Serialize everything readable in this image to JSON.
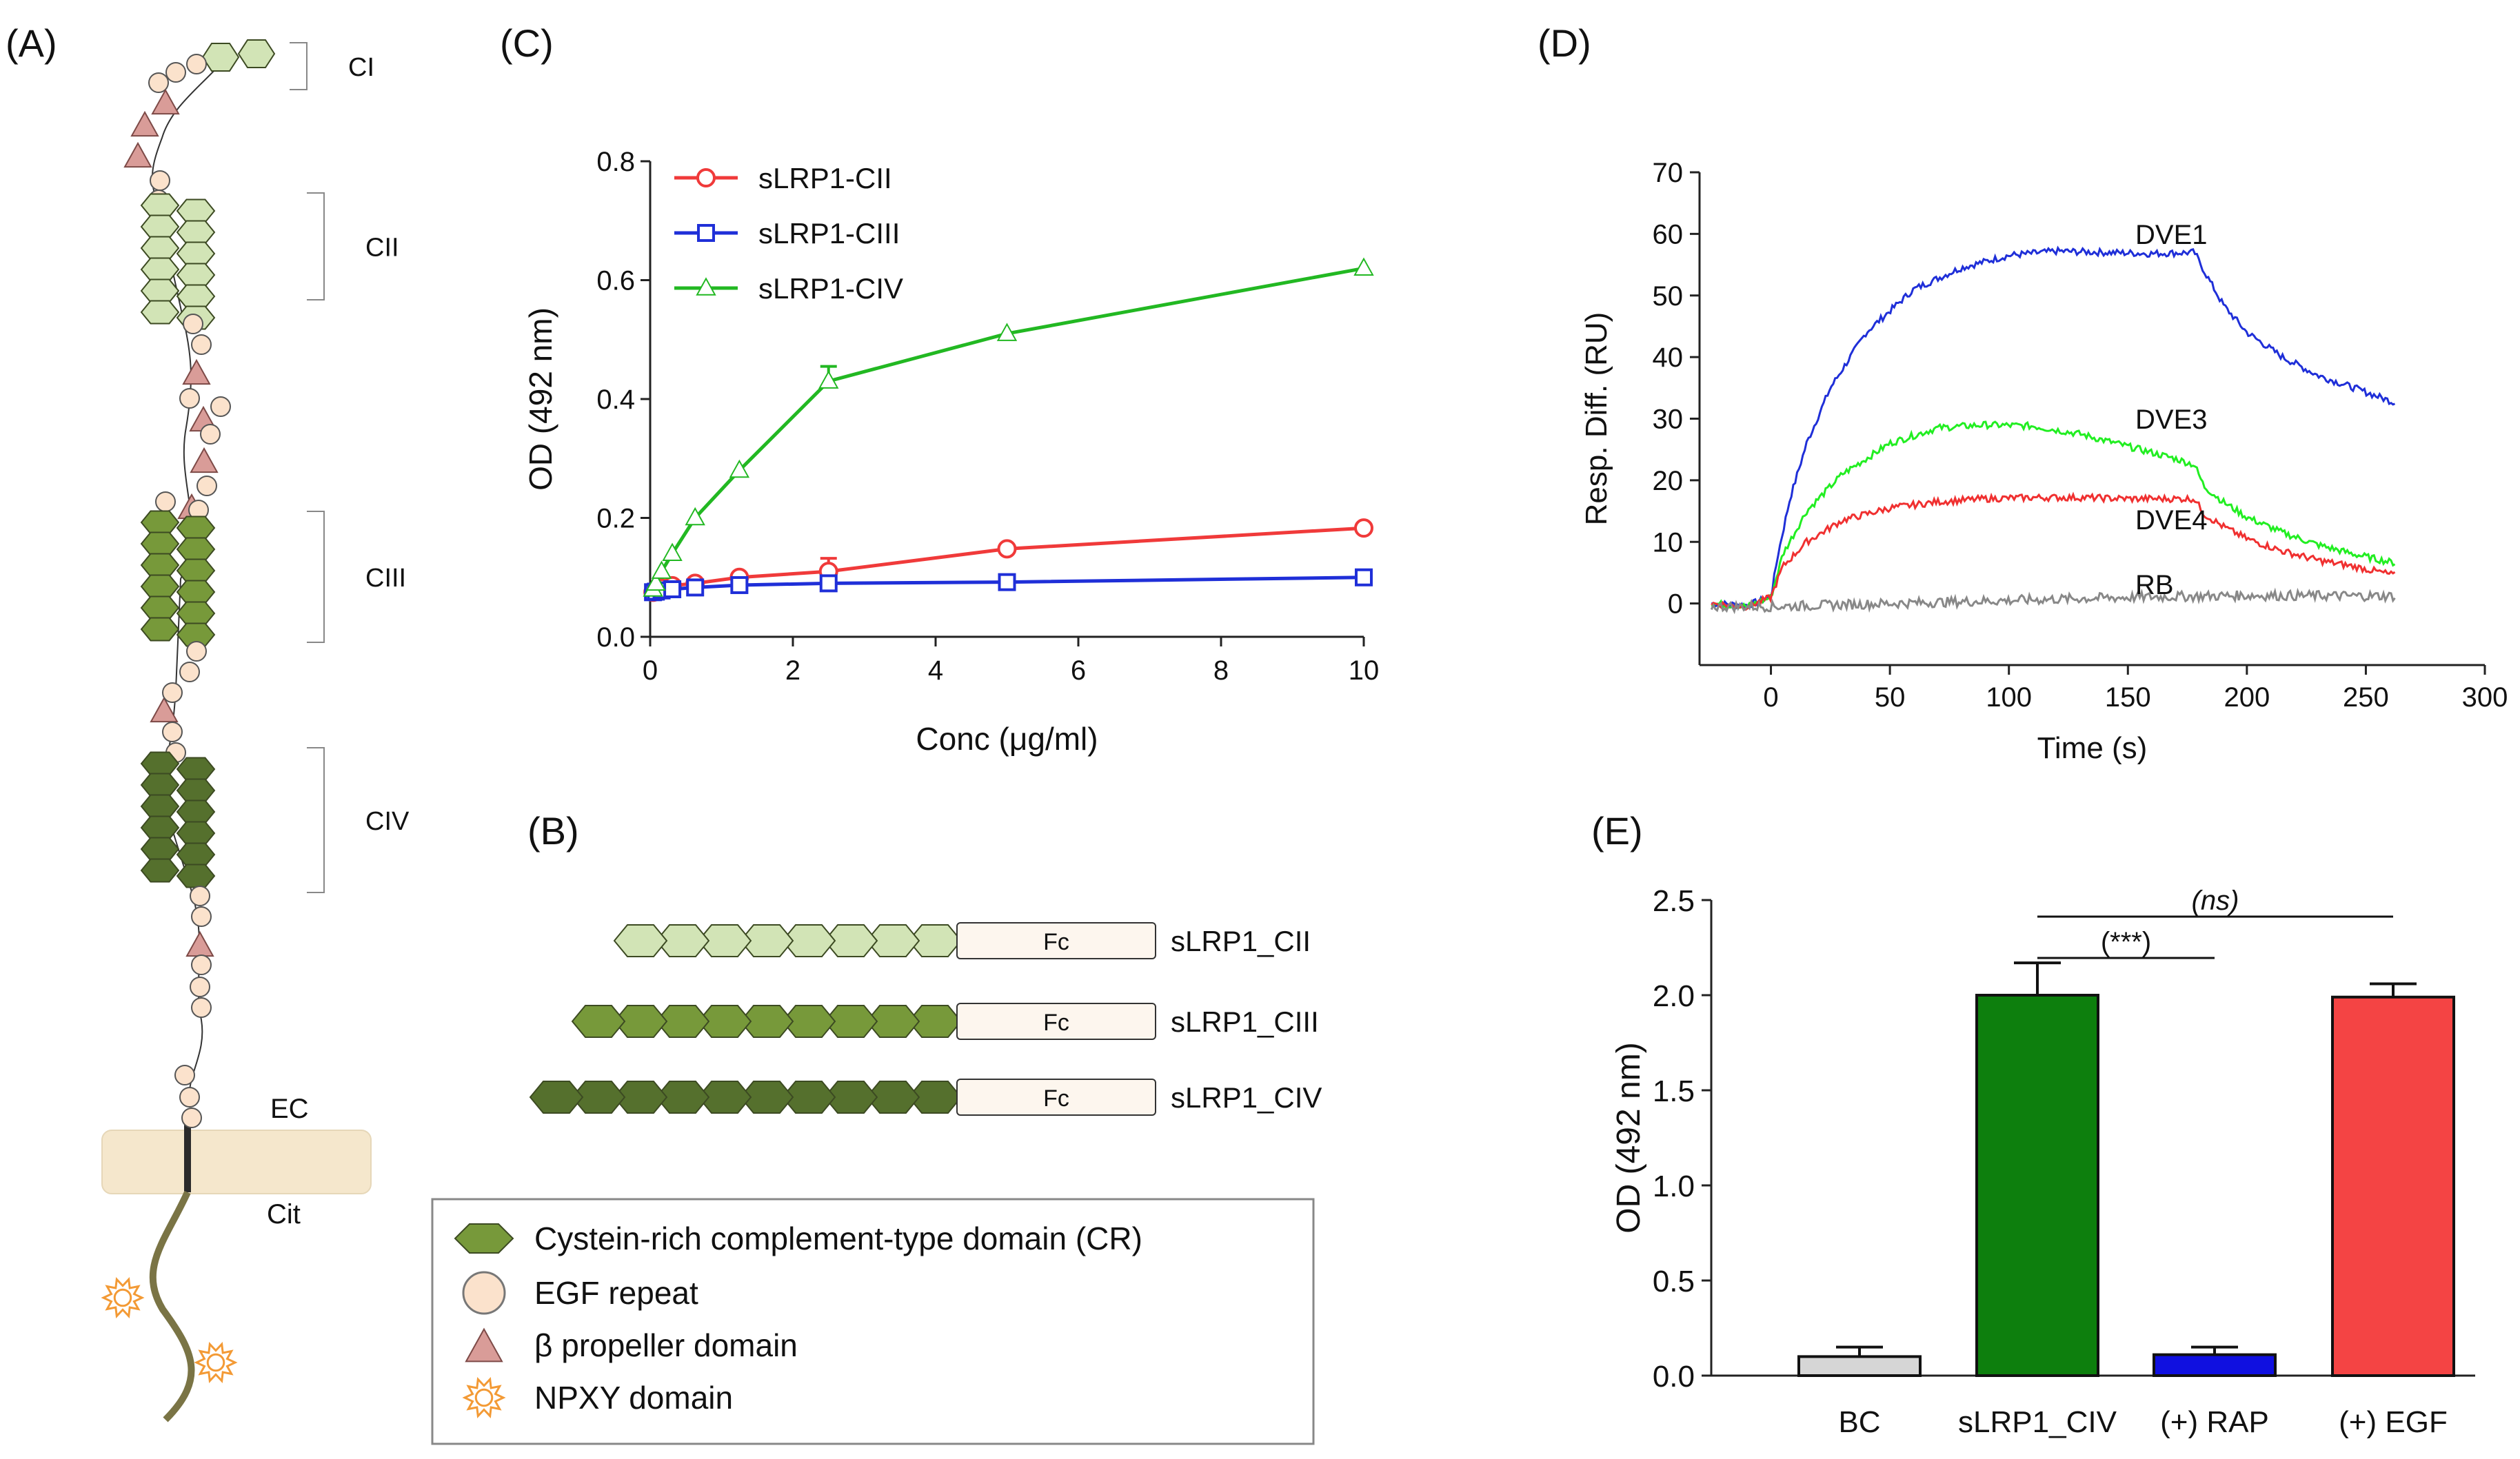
{
  "figure": {
    "panel_labels": {
      "a": "(A)",
      "b": "(B)",
      "c": "(C)",
      "d": "(D)",
      "e": "(E)"
    }
  },
  "colors": {
    "cr_light": "#d2e4b6",
    "cr_mid": "#77993a",
    "cr_dark": "#55702d",
    "egf": "#fbe2cc",
    "propeller": "#d99c98",
    "npxy": "#f39a35",
    "membrane": "#f5e7cc",
    "tail": "#7a7445",
    "fc": "#fdf6ee",
    "red": "#f03a3a",
    "blue": "#1f2fd8",
    "green": "#22b822",
    "gray": "#8a8a8a"
  },
  "panel_a": {
    "cluster_labels": [
      "CI",
      "CII",
      "CIII",
      "CIV"
    ],
    "membrane": {
      "ec": "EC",
      "cit": "Cit"
    }
  },
  "panel_b": {
    "constructs": [
      {
        "name": "sLRP1_CII",
        "domains": 8,
        "fc": "Fc"
      },
      {
        "name": "sLRP1_CIII",
        "domains": 9,
        "fc": "Fc"
      },
      {
        "name": "sLRP1_CIV",
        "domains": 10,
        "fc": "Fc"
      }
    ],
    "legend": [
      {
        "label": "Cystein-rich complement-type domain (CR)",
        "symbol": "hexagon"
      },
      {
        "label": "EGF repeat",
        "symbol": "circle"
      },
      {
        "label": "β propeller domain",
        "symbol": "triangle"
      },
      {
        "label": "NPXY domain",
        "symbol": "sun"
      }
    ]
  },
  "chart_data": [
    {
      "panel": "(C)",
      "type": "line",
      "title": "",
      "xlabel": "Conc (μg/ml)",
      "ylabel": "OD (492 nm)",
      "xlim": [
        0,
        10
      ],
      "ylim": [
        0,
        0.8
      ],
      "xticks": [
        0,
        2,
        4,
        6,
        8,
        10
      ],
      "yticks": [
        0.0,
        0.2,
        0.4,
        0.6,
        0.8
      ],
      "yticklabels": [
        "0.0",
        "0.2",
        "0.4",
        "0.6",
        "0.8"
      ],
      "x": [
        0.04,
        0.08,
        0.16,
        0.31,
        0.63,
        1.25,
        2.5,
        5,
        10
      ],
      "series": [
        {
          "name": "sLRP1-CII",
          "marker": "circle",
          "color": "#f03a3a",
          "values": [
            0.075,
            0.078,
            0.082,
            0.086,
            0.09,
            0.1,
            0.11,
            0.148,
            0.183
          ],
          "err": [
            0,
            0,
            0,
            0,
            0,
            0,
            0.022,
            0,
            0
          ]
        },
        {
          "name": "sLRP1-CIII",
          "marker": "square",
          "color": "#1f2fd8",
          "values": [
            0.075,
            0.076,
            0.078,
            0.08,
            0.083,
            0.087,
            0.09,
            0.092,
            0.1
          ],
          "err": [
            0,
            0,
            0,
            0,
            0,
            0,
            0,
            0,
            0
          ]
        },
        {
          "name": "sLRP1-CIV",
          "marker": "triangle",
          "color": "#22b822",
          "values": [
            0.08,
            0.09,
            0.11,
            0.14,
            0.2,
            0.28,
            0.43,
            0.51,
            0.62
          ],
          "err": [
            0,
            0,
            0,
            0,
            0,
            0,
            0.025,
            0,
            0
          ]
        }
      ],
      "legend": "top-left"
    },
    {
      "panel": "(D)",
      "type": "line",
      "title": "",
      "xlabel": "Time (s)",
      "ylabel": "Resp. Diff. (RU)",
      "xlim": [
        -30,
        300
      ],
      "ylim": [
        -10,
        70
      ],
      "xticks": [
        0,
        50,
        100,
        150,
        200,
        250,
        300
      ],
      "yticks": [
        0,
        10,
        20,
        30,
        40,
        50,
        60,
        70
      ],
      "series": [
        {
          "name": "DVE1",
          "color": "#1f2fd8",
          "x": [
            -25,
            -10,
            0,
            3,
            8,
            15,
            25,
            40,
            60,
            80,
            100,
            120,
            140,
            160,
            178,
            182,
            190,
            200,
            215,
            230,
            245,
            263
          ],
          "values": [
            0,
            -0.3,
            1,
            8,
            17,
            26,
            35,
            44,
            51,
            54.5,
            56.5,
            57.2,
            57,
            56.8,
            57,
            54,
            48.5,
            44,
            40,
            37,
            35,
            32.5
          ]
        },
        {
          "name": "DVE3",
          "color": "#22ee22",
          "x": [
            -25,
            -10,
            0,
            5,
            15,
            30,
            50,
            70,
            90,
            110,
            130,
            150,
            170,
            178,
            182,
            190,
            200,
            215,
            230,
            245,
            263
          ],
          "values": [
            0,
            -0.5,
            1,
            8,
            15,
            21,
            26,
            28.5,
            29,
            28.8,
            27.5,
            25.5,
            23.5,
            22.5,
            19,
            16.5,
            14,
            11.5,
            9.5,
            8,
            6.5
          ]
        },
        {
          "name": "DVE4",
          "color": "#f03030",
          "x": [
            -25,
            -10,
            0,
            5,
            15,
            30,
            50,
            70,
            90,
            110,
            130,
            150,
            170,
            178,
            182,
            190,
            200,
            215,
            230,
            245,
            263
          ],
          "values": [
            0,
            -0.5,
            1,
            6,
            10,
            13.5,
            15.5,
            16.5,
            17,
            17.2,
            17.2,
            17,
            17,
            17,
            14.5,
            12.5,
            10.5,
            8.5,
            7,
            6,
            4.5
          ]
        },
        {
          "name": "RB",
          "color": "#888888",
          "x": [
            -25,
            0,
            50,
            100,
            150,
            200,
            263
          ],
          "values": [
            -0.5,
            -0.5,
            0,
            0.5,
            1,
            1.3,
            1.2
          ]
        }
      ],
      "annotations": [
        "DVE1",
        "DVE3",
        "DVE4",
        "RB"
      ]
    },
    {
      "panel": "(E)",
      "type": "bar",
      "title": "",
      "xlabel": "",
      "ylabel": "OD (492 nm)",
      "ylim": [
        0,
        2.5
      ],
      "yticks": [
        0.0,
        0.5,
        1.0,
        1.5,
        2.0,
        2.5
      ],
      "yticklabels": [
        "0.0",
        "0.5",
        "1.0",
        "1.5",
        "2.0",
        "2.5"
      ],
      "categories": [
        "BC",
        "sLRP1_CIV",
        "(+) RAP",
        "(+) EGF"
      ],
      "values": [
        0.1,
        2.0,
        0.11,
        1.99
      ],
      "errors": [
        0.05,
        0.17,
        0.04,
        0.07
      ],
      "colors": [
        "#d6d6d6",
        "#0d7f0d",
        "#1010e0",
        "#f44444"
      ],
      "significance": [
        {
          "from": "sLRP1_CIV",
          "to": "(+) RAP",
          "label": "(***)"
        },
        {
          "from": "sLRP1_CIV",
          "to": "(+) EGF",
          "label": "(ns)"
        }
      ]
    }
  ]
}
